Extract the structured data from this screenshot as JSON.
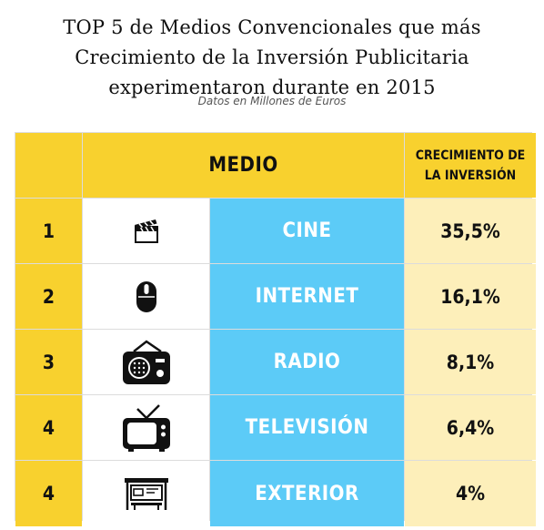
{
  "title": {
    "line1": "TOP 5 de Medios Convencionales que más",
    "line2": "Crecimiento de la Inversión Publicitaria",
    "line3": "experimentaron durante en 2015"
  },
  "subtitle": "Datos en Millones de Euros",
  "colors": {
    "header": "#f8d12e",
    "medium_cell": "#5ccbf7",
    "value_cell": "#fdefba"
  },
  "chart_data": {
    "type": "table",
    "columns": [
      "MEDIO",
      "CRECIMIENTO DE LA INVERSIÓN"
    ],
    "rows": [
      {
        "rank": "1",
        "icon": "clapperboard-icon",
        "medium": "CINE",
        "value": "35,5%"
      },
      {
        "rank": "2",
        "icon": "mouse-icon",
        "medium": "INTERNET",
        "value": "16,1%"
      },
      {
        "rank": "3",
        "icon": "radio-icon",
        "medium": "RADIO",
        "value": "8,1%"
      },
      {
        "rank": "4",
        "icon": "television-icon",
        "medium": "TELEVISIÓN",
        "value": "6,4%"
      },
      {
        "rank": "4",
        "icon": "bus-stop-icon",
        "medium": "EXTERIOR",
        "value": "4%"
      }
    ]
  }
}
